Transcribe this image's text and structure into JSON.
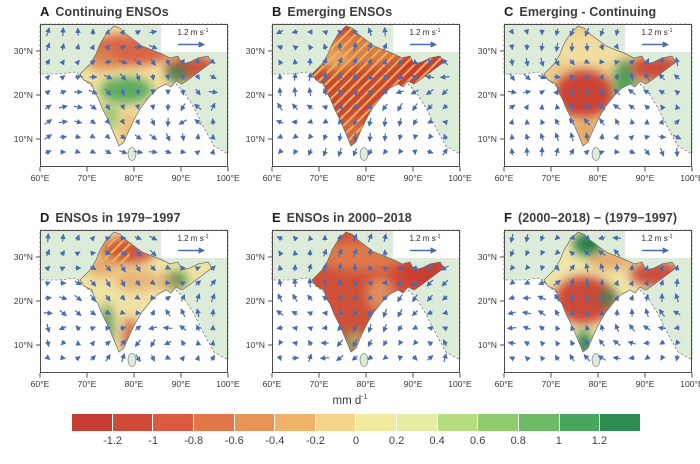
{
  "chart_data": {
    "type": "heatmap",
    "description": "Six-panel geographic figure of rainfall anomalies (shading, mm per day) and wind anomaly vectors (blue arrows) over India and surrounding seas during ENSO events.",
    "panels": [
      {
        "letter": "A",
        "title": "Continuing ENSOs",
        "base_color": "#f2df9e",
        "hatch": null,
        "summary": "Red/orange drying across north India, strong green wet anomaly over central India, red over northeast arm with small dark-green spot.",
        "regions": [
          {
            "area": "north-band",
            "color": "#d4583c",
            "opacity": 0.9
          },
          {
            "area": "northwest",
            "color": "#e08a50",
            "opacity": 0.75
          },
          {
            "area": "central-green",
            "color": "#55a95c",
            "opacity": 0.95
          },
          {
            "area": "west-green",
            "color": "#7fbf68",
            "opacity": 0.7
          },
          {
            "area": "northeast-arm",
            "color": "#c84536",
            "opacity": 0.9
          },
          {
            "area": "northeast-spot",
            "color": "#2e8b4f",
            "opacity": 0.9
          },
          {
            "area": "southeast-coast",
            "color": "#e69a55",
            "opacity": 0.5
          }
        ]
      },
      {
        "letter": "B",
        "title": "Emerging ENSOs",
        "base_color": "#c94737",
        "hatch": "full",
        "summary": "Strong red dry anomaly over nearly all of India with dense diagonal significance hatching; orange in far north.",
        "regions": [
          {
            "area": "north-band",
            "color": "#e59a5c",
            "opacity": 0.65
          },
          {
            "area": "northwest",
            "color": "#f0c478",
            "opacity": 0.6
          },
          {
            "area": "northeast-arm",
            "color": "#c83d32",
            "opacity": 0.95
          },
          {
            "area": "south-orange",
            "color": "#df8a50",
            "opacity": 0.55
          }
        ]
      },
      {
        "letter": "C",
        "title": "Emerging - Continuing",
        "base_color": "#eccd8d",
        "hatch": null,
        "summary": "Difference map: large red anomaly over west-central India, green band along east India, red northeast arm, pale yellow north.",
        "regions": [
          {
            "area": "north-band",
            "color": "#f2e0a2",
            "opacity": 0.85
          },
          {
            "area": "west-central-red",
            "color": "#c73b30",
            "opacity": 0.95
          },
          {
            "area": "east-green-band",
            "color": "#3f9b52",
            "opacity": 0.9
          },
          {
            "area": "northeast-arm",
            "color": "#c83d32",
            "opacity": 0.9
          },
          {
            "area": "south-orange",
            "color": "#e2924f",
            "opacity": 0.6
          }
        ]
      },
      {
        "letter": "D",
        "title": "ENSOs in 1979−1997",
        "base_color": "#f0e2a2",
        "hatch": "patch",
        "summary": "Red band with hatching over far north, green strip on west coast, red southeast coast, dark-green spot near northeast, pale center.",
        "regions": [
          {
            "area": "north-red",
            "color": "#cc4a36",
            "opacity": 0.9
          },
          {
            "area": "northwest",
            "color": "#e08a4e",
            "opacity": 0.6
          },
          {
            "area": "center-orange",
            "color": "#e2884e",
            "opacity": 0.5
          },
          {
            "area": "west-coast-strip",
            "color": "#3f8f50",
            "opacity": 0.85
          },
          {
            "area": "southeast-coast",
            "color": "#cc5038",
            "opacity": 0.8
          },
          {
            "area": "northeast-spot",
            "color": "#2d8c4e",
            "opacity": 0.9
          },
          {
            "area": "bengal",
            "color": "#df8a50",
            "opacity": 0.5
          }
        ]
      },
      {
        "letter": "E",
        "title": "ENSOs in 2000−2018",
        "base_color": "#d0503a",
        "hatch": null,
        "summary": "Widespread strong red drying over most of India including the northeast; small green at the southern tip; cyclonic gyres over the oceans.",
        "regions": [
          {
            "area": "north-band",
            "color": "#e89a58",
            "opacity": 0.55
          },
          {
            "area": "east-pale",
            "color": "#eabf7c",
            "opacity": 0.55
          },
          {
            "area": "northeast-arm",
            "color": "#c83d32",
            "opacity": 0.9
          },
          {
            "area": "southern-tip-green",
            "color": "#4fa055",
            "opacity": 0.6
          },
          {
            "area": "south-pale",
            "color": "#ecd492",
            "opacity": 0.45
          }
        ]
      },
      {
        "letter": "F",
        "title": "(2000−2018) − (1979−1997)",
        "base_color": "#efe4a5",
        "hatch": null,
        "summary": "Difference map: dark-green wet anomaly in the Himalayan north and at the southern tip, red over west-central India and northeast arm.",
        "regions": [
          {
            "area": "north-green-blob",
            "color": "#1f7b46",
            "opacity": 0.95
          },
          {
            "area": "north-band-east",
            "color": "#e0874e",
            "opacity": 0.6
          },
          {
            "area": "west-central-red",
            "color": "#c8392f",
            "opacity": 0.9
          },
          {
            "area": "center-east-green",
            "color": "#2d8c4e",
            "opacity": 0.8
          },
          {
            "area": "southern-tip-green",
            "color": "#1f7b46",
            "opacity": 0.9
          },
          {
            "area": "northeast-arm",
            "color": "#c83d32",
            "opacity": 0.9
          }
        ]
      }
    ],
    "x_ticks": [
      "60°E",
      "70°E",
      "80°E",
      "90°E",
      "100°E"
    ],
    "y_ticks": [
      "30°N",
      "20°N",
      "10°N"
    ],
    "lon_range": [
      60,
      100
    ],
    "lat_range": [
      4,
      36
    ],
    "grid": false,
    "reference_vector": {
      "value": "1.2 m s",
      "exponent": "-1"
    },
    "colorbar": {
      "label_base": "mm d",
      "label_exponent": "-1",
      "ticks": [
        "-1.2",
        "-1",
        "-0.8",
        "-0.6",
        "-0.4",
        "-0.2",
        "0",
        "0.2",
        "0.4",
        "0.6",
        "0.8",
        "1",
        "1.2"
      ],
      "colors": [
        "#c63d33",
        "#d04a38",
        "#da5b40",
        "#e2784a",
        "#e99355",
        "#f0b269",
        "#f3d488",
        "#f2ea9e",
        "#e4eda2",
        "#b5dc7d",
        "#8fca6c",
        "#6cba64",
        "#48a75c",
        "#2c8c51"
      ]
    }
  },
  "colors": {
    "ocean": "#ffffff",
    "land": "#ddecd8",
    "arrow": "#4a6cb3",
    "frame": "#4d4d4d",
    "coast": "#5a5a5a",
    "hatch": "#f0b94f"
  }
}
